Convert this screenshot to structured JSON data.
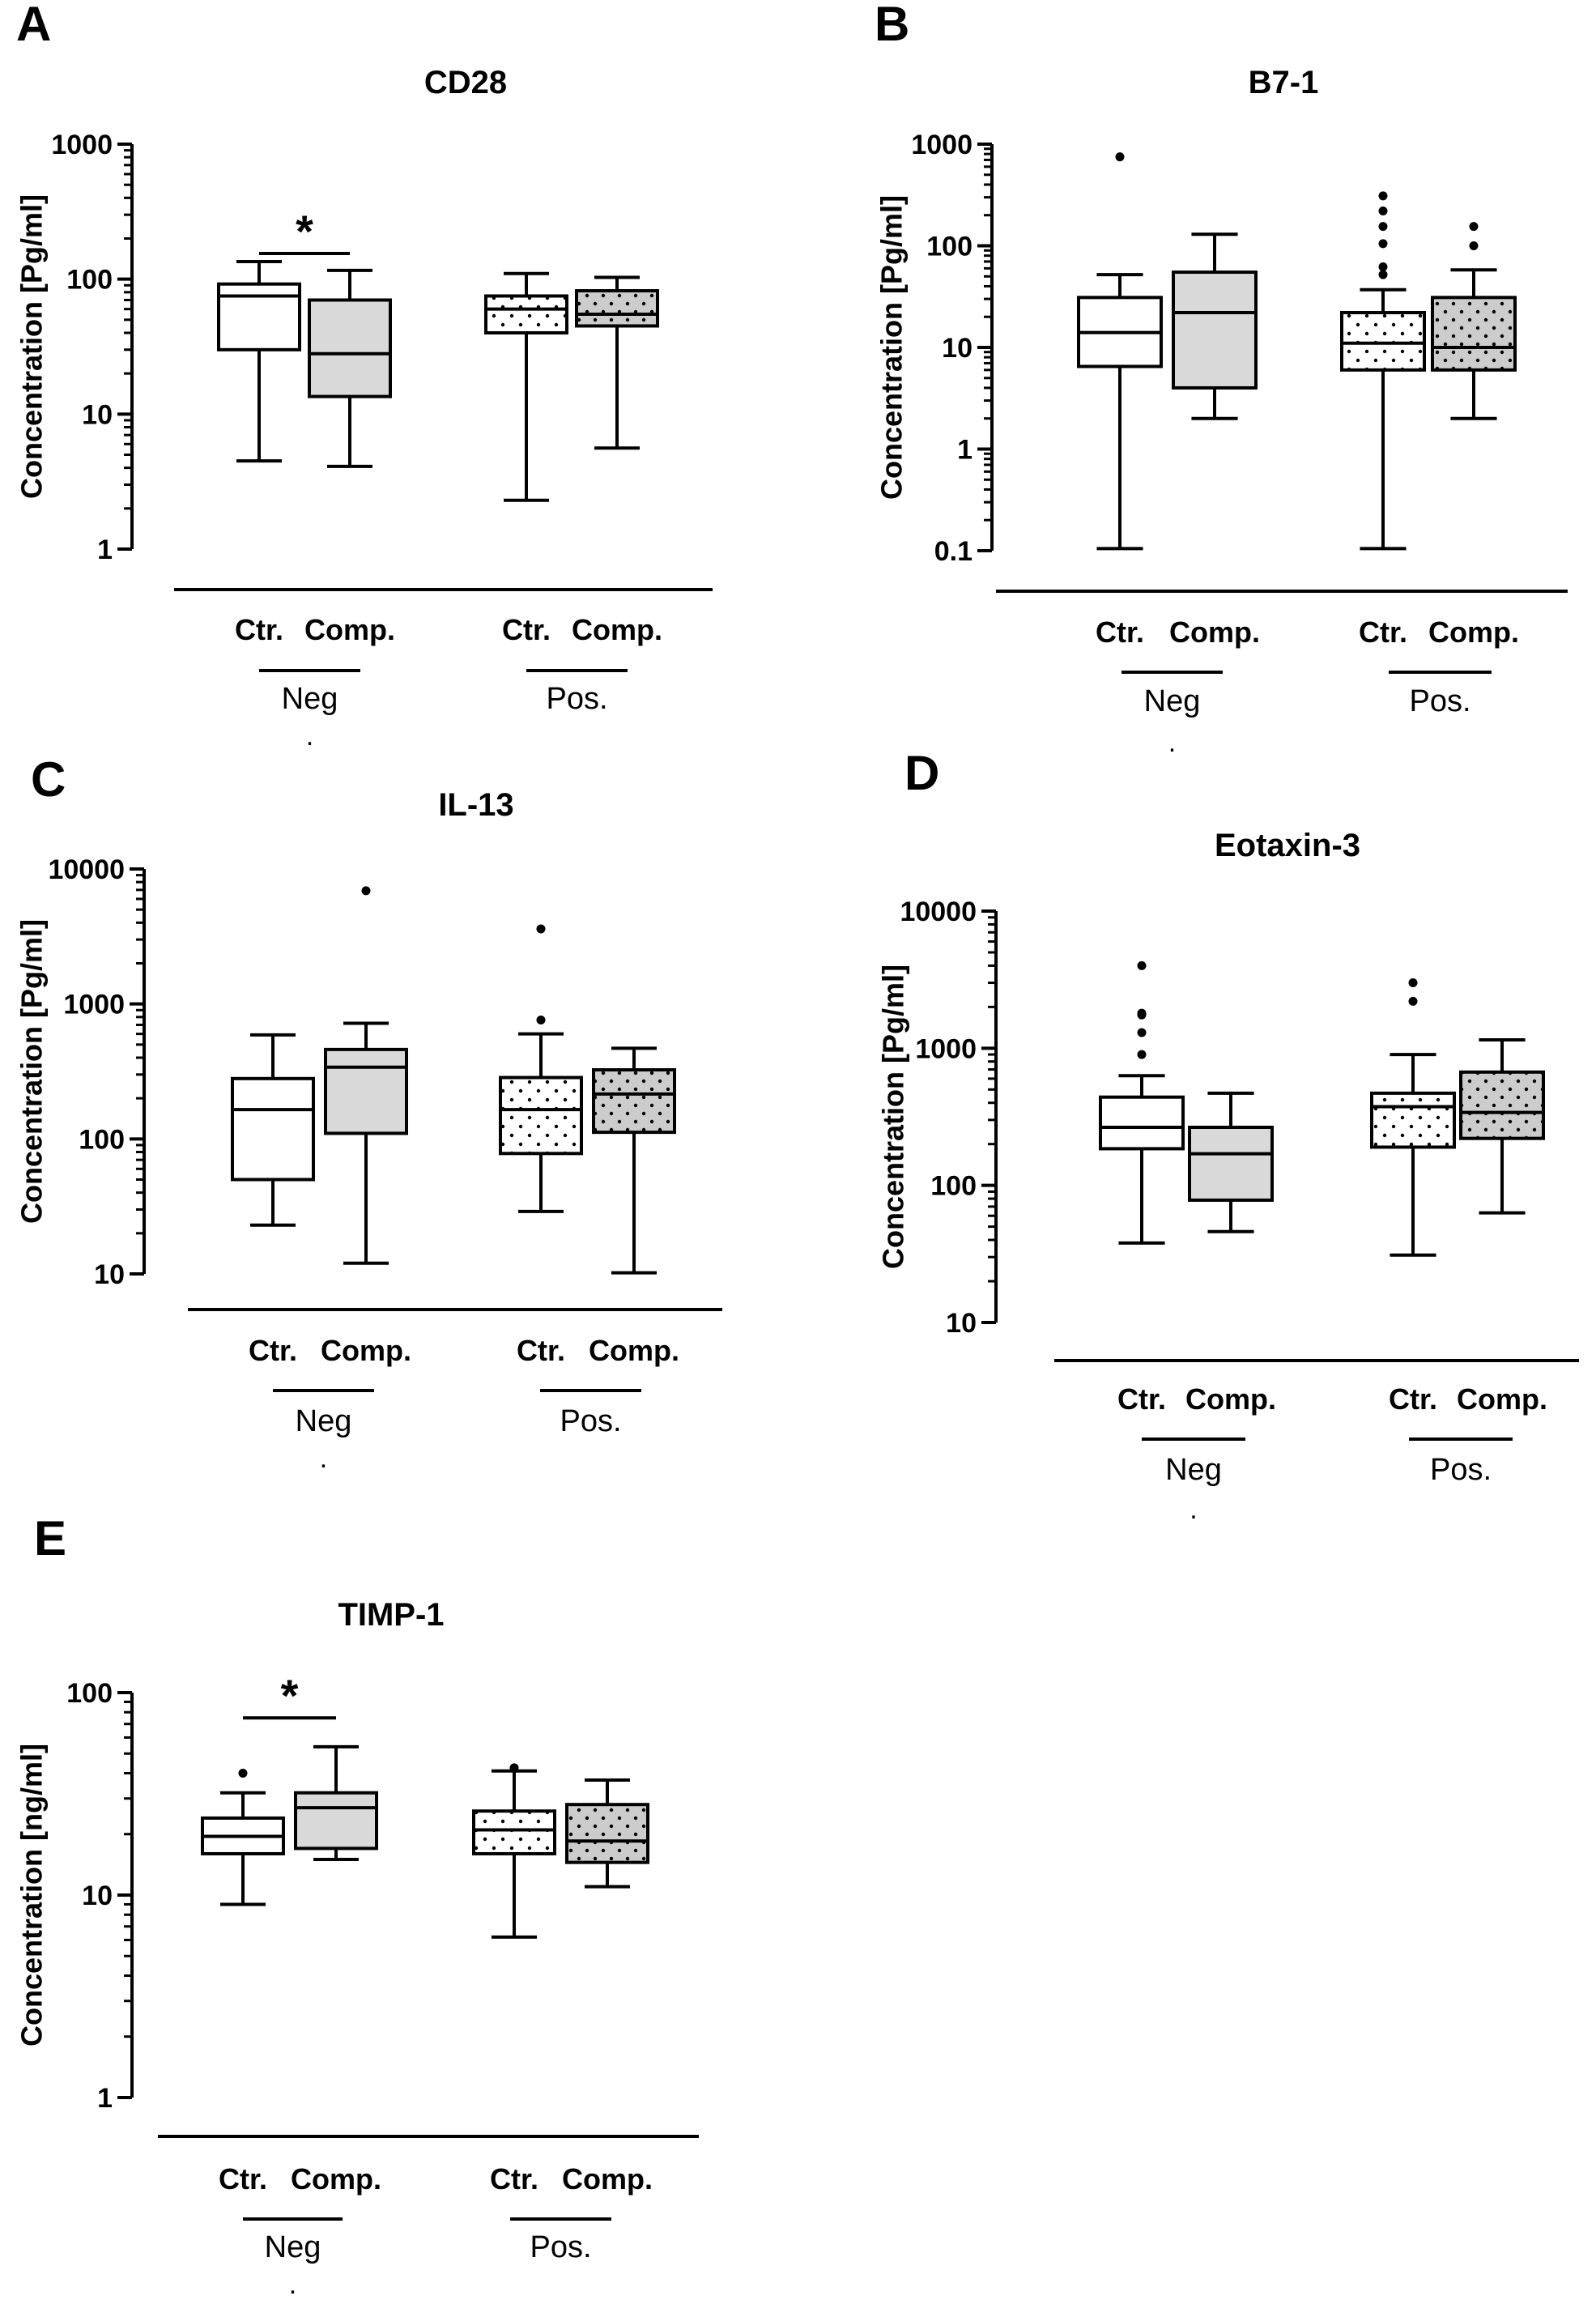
{
  "figure": {
    "colors": {
      "ink": "#000000",
      "neg_comp_fill": "#d9d9d9",
      "pos_comp_fill": "#cccccc",
      "pos_ctr_fill": "#ffffff",
      "background": "#ffffff"
    },
    "dot_label": "."
  },
  "chart_data": [
    {
      "panel": "A",
      "type": "boxplot",
      "title": "CD28",
      "ylabel": "Concentration [Pg/ml]",
      "yscale": "log",
      "ylim": [
        1,
        1000
      ],
      "yticks": [
        {
          "v": 1,
          "t": "1"
        },
        {
          "v": 10,
          "t": "10"
        },
        {
          "v": 100,
          "t": "100"
        },
        {
          "v": 1000,
          "t": "1000"
        }
      ],
      "group_labels": [
        "Neg",
        "Pos."
      ],
      "categories": [
        "Ctr.",
        "Comp.",
        "Ctr.",
        "Comp."
      ],
      "boxes": [
        {
          "category": "Ctr.",
          "group": "Neg",
          "min": 4.5,
          "q1": 30,
          "median": 75,
          "q3": 92,
          "max": 135,
          "outliers": []
        },
        {
          "category": "Comp.",
          "group": "Neg",
          "min": 4.1,
          "q1": 13.5,
          "median": 28,
          "q3": 70,
          "max": 116,
          "outliers": []
        },
        {
          "category": "Ctr.",
          "group": "Pos.",
          "min": 2.3,
          "q1": 40,
          "median": 60,
          "q3": 75,
          "max": 110,
          "outliers": []
        },
        {
          "category": "Comp.",
          "group": "Pos.",
          "min": 5.6,
          "q1": 45,
          "median": 55,
          "q3": 82,
          "max": 103,
          "outliers": []
        }
      ],
      "significance": [
        {
          "between": [
            0,
            1
          ],
          "label": "*",
          "y": 155
        }
      ]
    },
    {
      "panel": "B",
      "type": "boxplot",
      "title": "B7-1",
      "ylabel": "Concentration [Pg/ml]",
      "yscale": "log",
      "ylim": [
        0.1,
        1000
      ],
      "yticks": [
        {
          "v": 0.1,
          "t": "0.1"
        },
        {
          "v": 1,
          "t": "1"
        },
        {
          "v": 10,
          "t": "10"
        },
        {
          "v": 100,
          "t": "100"
        },
        {
          "v": 1000,
          "t": "1000"
        }
      ],
      "group_labels": [
        "Neg",
        "Pos."
      ],
      "categories": [
        "Ctr.",
        "Comp.",
        "Ctr.",
        "Comp."
      ],
      "boxes": [
        {
          "category": "Ctr.",
          "group": "Neg",
          "min": 0.105,
          "q1": 6.5,
          "median": 14,
          "q3": 31,
          "max": 52,
          "outliers": [
            750
          ]
        },
        {
          "category": "Comp.",
          "group": "Neg",
          "min": 2,
          "q1": 4,
          "median": 22,
          "q3": 55,
          "max": 130,
          "outliers": []
        },
        {
          "category": "Ctr.",
          "group": "Pos.",
          "min": 0.105,
          "q1": 6,
          "median": 11,
          "q3": 22,
          "max": 37,
          "outliers": [
            52,
            62,
            105,
            155,
            220,
            310
          ]
        },
        {
          "category": "Comp.",
          "group": "Pos.",
          "min": 2,
          "q1": 6,
          "median": 10,
          "q3": 31,
          "max": 58,
          "outliers": [
            100,
            155
          ]
        }
      ],
      "significance": []
    },
    {
      "panel": "C",
      "type": "boxplot",
      "title": "IL-13",
      "ylabel": "Concentration  [Pg/ml]",
      "yscale": "log",
      "ylim": [
        10,
        10000
      ],
      "yticks": [
        {
          "v": 10,
          "t": "10"
        },
        {
          "v": 100,
          "t": "100"
        },
        {
          "v": 1000,
          "t": "1000"
        },
        {
          "v": 10000,
          "t": "10000"
        }
      ],
      "group_labels": [
        "Neg",
        "Pos."
      ],
      "categories": [
        "Ctr.",
        "Comp.",
        "Ctr.",
        "Comp."
      ],
      "boxes": [
        {
          "category": "Ctr.",
          "group": "Neg",
          "min": 23,
          "q1": 50,
          "median": 165,
          "q3": 280,
          "max": 590,
          "outliers": []
        },
        {
          "category": "Comp.",
          "group": "Neg",
          "min": 12,
          "q1": 110,
          "median": 340,
          "q3": 460,
          "max": 720,
          "outliers": [
            6900
          ]
        },
        {
          "category": "Ctr.",
          "group": "Pos.",
          "min": 29,
          "q1": 78,
          "median": 165,
          "q3": 285,
          "max": 600,
          "outliers": [
            760,
            3600
          ]
        },
        {
          "category": "Comp.",
          "group": "Pos.",
          "min": 10.2,
          "q1": 112,
          "median": 215,
          "q3": 325,
          "max": 470,
          "outliers": []
        }
      ],
      "significance": []
    },
    {
      "panel": "D",
      "type": "boxplot",
      "title": "Eotaxin-3",
      "ylabel": "Concentration [Pg/ml]",
      "yscale": "log",
      "ylim": [
        10,
        10000
      ],
      "yticks": [
        {
          "v": 10,
          "t": "10"
        },
        {
          "v": 100,
          "t": "100"
        },
        {
          "v": 1000,
          "t": "1000"
        },
        {
          "v": 10000,
          "t": "10000"
        }
      ],
      "group_labels": [
        "Neg",
        "Pos."
      ],
      "categories": [
        "Ctr.",
        "Comp.",
        "Ctr.",
        "Comp."
      ],
      "boxes": [
        {
          "category": "Ctr.",
          "group": "Neg",
          "min": 38,
          "q1": 185,
          "median": 265,
          "q3": 440,
          "max": 630,
          "outliers": [
            900,
            1300,
            1750,
            1800,
            4000
          ]
        },
        {
          "category": "Comp.",
          "group": "Neg",
          "min": 46,
          "q1": 78,
          "median": 170,
          "q3": 265,
          "max": 470,
          "outliers": []
        },
        {
          "category": "Ctr.",
          "group": "Pos.",
          "min": 31,
          "q1": 190,
          "median": 375,
          "q3": 470,
          "max": 900,
          "outliers": [
            2200,
            3000
          ]
        },
        {
          "category": "Comp.",
          "group": "Pos.",
          "min": 63,
          "q1": 220,
          "median": 340,
          "q3": 670,
          "max": 1150,
          "outliers": []
        }
      ],
      "significance": []
    },
    {
      "panel": "E",
      "type": "boxplot",
      "title": "TIMP-1",
      "ylabel": "Concentration [ng/ml]",
      "yscale": "log",
      "ylim": [
        1,
        100
      ],
      "yticks": [
        {
          "v": 1,
          "t": "1"
        },
        {
          "v": 10,
          "t": "10"
        },
        {
          "v": 100,
          "t": "100"
        }
      ],
      "group_labels": [
        "Neg",
        "Pos."
      ],
      "categories": [
        "Ctr.",
        "Comp.",
        "Ctr.",
        "Comp."
      ],
      "boxes": [
        {
          "category": "Ctr.",
          "group": "Neg",
          "min": 9,
          "q1": 16,
          "median": 19.5,
          "q3": 24,
          "max": 32,
          "outliers": [
            40
          ]
        },
        {
          "category": "Comp.",
          "group": "Neg",
          "min": 15,
          "q1": 17,
          "median": 27,
          "q3": 32,
          "max": 54,
          "outliers": []
        },
        {
          "category": "Ctr.",
          "group": "Pos.",
          "min": 6.2,
          "q1": 16,
          "median": 21,
          "q3": 26,
          "max": 41,
          "outliers": [
            42.5
          ]
        },
        {
          "category": "Comp.",
          "group": "Pos.",
          "min": 11,
          "q1": 14.5,
          "median": 18.5,
          "q3": 28,
          "max": 37,
          "outliers": []
        }
      ],
      "significance": [
        {
          "between": [
            0,
            1
          ],
          "label": "*",
          "y": 75
        }
      ]
    }
  ]
}
